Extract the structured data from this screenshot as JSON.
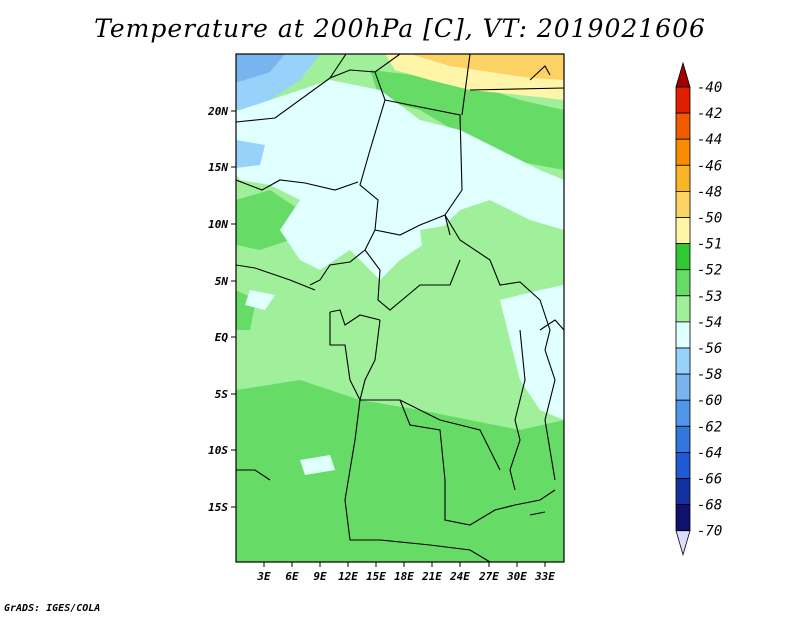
{
  "title": "Temperature at 200hPa [C], VT: 2019021606",
  "credit": "GrADS: IGES/COLA",
  "map": {
    "lat_labels": [
      "20N",
      "15N",
      "10N",
      "5N",
      "EQ",
      "5S",
      "10S",
      "15S"
    ],
    "lon_labels": [
      "3E",
      "6E",
      "9E",
      "12E",
      "15E",
      "18E",
      "21E",
      "24E",
      "27E",
      "30E",
      "33E"
    ]
  },
  "colorbar": {
    "labels": [
      "-40",
      "-42",
      "-44",
      "-46",
      "-48",
      "-50",
      "-51",
      "-52",
      "-53",
      "-54",
      "-56",
      "-58",
      "-60",
      "-62",
      "-64",
      "-66",
      "-68",
      "-70"
    ],
    "colors": [
      "#a00000",
      "#e01e00",
      "#f05a00",
      "#f88c00",
      "#fab428",
      "#fcd264",
      "#fff5a8",
      "#32c832",
      "#66dc66",
      "#a0f09b",
      "#e0ffff",
      "#96d2fa",
      "#78b4f0",
      "#5096eb",
      "#3278dc",
      "#1e5ad2",
      "#1232a0",
      "#10106e",
      "#dcdcff"
    ]
  }
}
